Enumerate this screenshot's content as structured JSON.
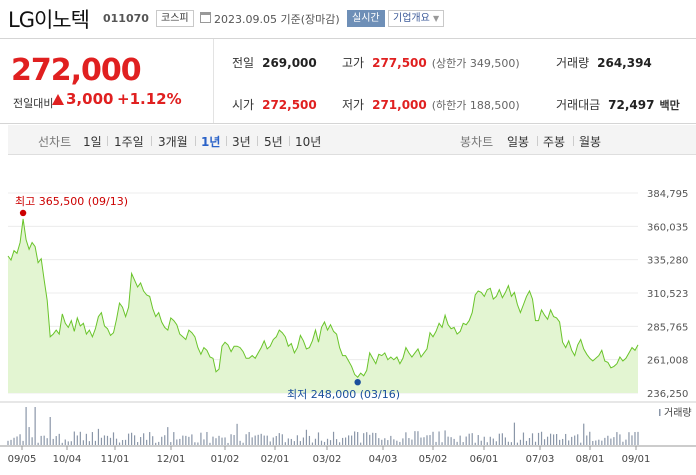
{
  "header": {
    "name": "LG이노텍",
    "code": "011070",
    "market": "코스피",
    "date_text": "2023.09.05 기준(장마감)",
    "live_label": "실시간",
    "info_label": "기업개요"
  },
  "quote": {
    "price": "272,000",
    "change_label": "전일대비",
    "change_value": "3,000",
    "change_rate": "+1.12%"
  },
  "stats": {
    "prev_close_label": "전일",
    "prev_close": "269,000",
    "high_label": "고가",
    "high": "277,500",
    "upper_limit": "(상한가 349,500)",
    "volume_label": "거래량",
    "volume": "264,394",
    "open_label": "시가",
    "open": "272,500",
    "low_label": "저가",
    "low": "271,000",
    "lower_limit": "(하한가 188,500)",
    "amount_label": "거래대금",
    "amount": "72,497",
    "amount_unit": "백만"
  },
  "periods": {
    "line_group": "선차트",
    "line_items": [
      "1일",
      "1주일",
      "3개월",
      "1년",
      "3년",
      "5년",
      "10년"
    ],
    "active": "1년",
    "candle_group": "봉차트",
    "candle_items": [
      "일봉",
      "주봉",
      "월봉"
    ]
  },
  "colors": {
    "line": "#6ac42b",
    "fill": "#e3f5d2",
    "up": "#e02020",
    "high_marker": "#cc0000",
    "low_marker": "#1a4f9c",
    "volume": "#8a96a8"
  },
  "chart_data": {
    "type": "area",
    "ylim": [
      236250,
      384795
    ],
    "yticks": [
      "384,795",
      "360,035",
      "335,280",
      "310,523",
      "285,765",
      "261,008",
      "236,250"
    ],
    "xticks": [
      "09/05",
      "10/04",
      "11/01",
      "12/01",
      "01/02",
      "02/01",
      "03/02",
      "04/03",
      "05/02",
      "06/01",
      "07/03",
      "08/01",
      "09/01"
    ],
    "annotations": {
      "high": {
        "label": "최고",
        "value_text": "365,500 (09/13)",
        "value": 365500
      },
      "low": {
        "label": "최저",
        "value_text": "248,000 (03/16)",
        "value": 248000
      }
    },
    "volume_label": "거래량",
    "series": [
      {
        "values": [
          338000,
          335000,
          342000,
          340000,
          348000,
          365500,
          350000,
          343000,
          348000,
          345000,
          333000,
          336000,
          320000,
          305000,
          278000,
          280000,
          283000,
          280000,
          295000,
          288000,
          285000,
          290000,
          282000,
          292000,
          286000,
          288000,
          280000,
          283000,
          278000,
          284000,
          293000,
          296000,
          286000,
          284000,
          279000,
          281000,
          291000,
          303000,
          300000,
          293000,
          300000,
          325000,
          320000,
          315000,
          318000,
          312000,
          309000,
          308000,
          299000,
          293000,
          296000,
          289000,
          285000,
          283000,
          292000,
          290000,
          287000,
          280000,
          278000,
          276000,
          283000,
          281000,
          278000,
          270000,
          265000,
          270000,
          268000,
          263000,
          262000,
          252000,
          254000,
          271000,
          274000,
          272000,
          267000,
          271000,
          271000,
          270000,
          267000,
          262000,
          262000,
          264000,
          262000,
          266000,
          270000,
          275000,
          269000,
          271000,
          276000,
          278000,
          283000,
          281000,
          278000,
          271000,
          273000,
          266000,
          270000,
          279000,
          275000,
          269000,
          270000,
          275000,
          283000,
          274000,
          285000,
          289000,
          283000,
          287000,
          282000,
          280000,
          270000,
          264000,
          264000,
          260000,
          256000,
          250000,
          248000,
          251000,
          249000,
          253000,
          266000,
          262000,
          258000,
          265000,
          264000,
          266000,
          261000,
          263000,
          261000,
          263000,
          258000,
          262000,
          270000,
          266000,
          263000,
          266000,
          269000,
          263000,
          266000,
          269000,
          281000,
          278000,
          282000,
          288000,
          285000,
          294000,
          287000,
          284000,
          285000,
          280000,
          282000,
          288000,
          287000,
          290000,
          296000,
          309000,
          312000,
          311000,
          308000,
          313000,
          314000,
          306000,
          308000,
          313000,
          307000,
          311000,
          316000,
          308000,
          311000,
          302000,
          296000,
          302000,
          308000,
          312000,
          306000,
          290000,
          290000,
          298000,
          294000,
          291000,
          298000,
          293000,
          292000,
          289000,
          274000,
          270000,
          275000,
          268000,
          264000,
          272000,
          276000,
          269000,
          265000,
          262000,
          260000,
          262000,
          264000,
          268000,
          260000,
          259000,
          255000,
          256000,
          258000,
          263000,
          260000,
          262000,
          266000,
          270000,
          268000,
          272000
        ]
      }
    ]
  }
}
